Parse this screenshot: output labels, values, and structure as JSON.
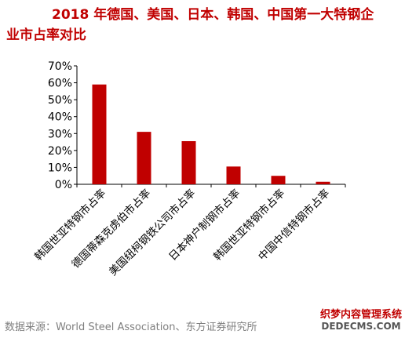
{
  "title_line1": "2018 年德国、美国、日本、韩国、中国第一大特钢企",
  "title_line2": "业市占率对比",
  "source": "数据来源：World Steel Association、东方证券研究所",
  "watermark": {
    "line1": "织梦内容管理系统",
    "line2": "DEDECMS.COM"
  },
  "colors": {
    "bar": "#c00000",
    "title": "#c00000",
    "axis": "#000000",
    "source": "#7f7f7f"
  },
  "chart_data": {
    "type": "bar",
    "categories": [
      "韩国世亚特钢市占率",
      "德国蒂森克虏伯市占率",
      "美国纽柯钢铁公司市占率",
      "日本神户制钢市占率",
      "韩国世亚特钢市占率",
      "中国中信特钢市占率"
    ],
    "values": [
      59,
      31,
      25.5,
      10.5,
      5,
      1.5
    ],
    "yticks": [
      "0%",
      "10%",
      "20%",
      "30%",
      "40%",
      "50%",
      "60%",
      "70%"
    ],
    "ylim": [
      0,
      70
    ],
    "grid": false
  }
}
